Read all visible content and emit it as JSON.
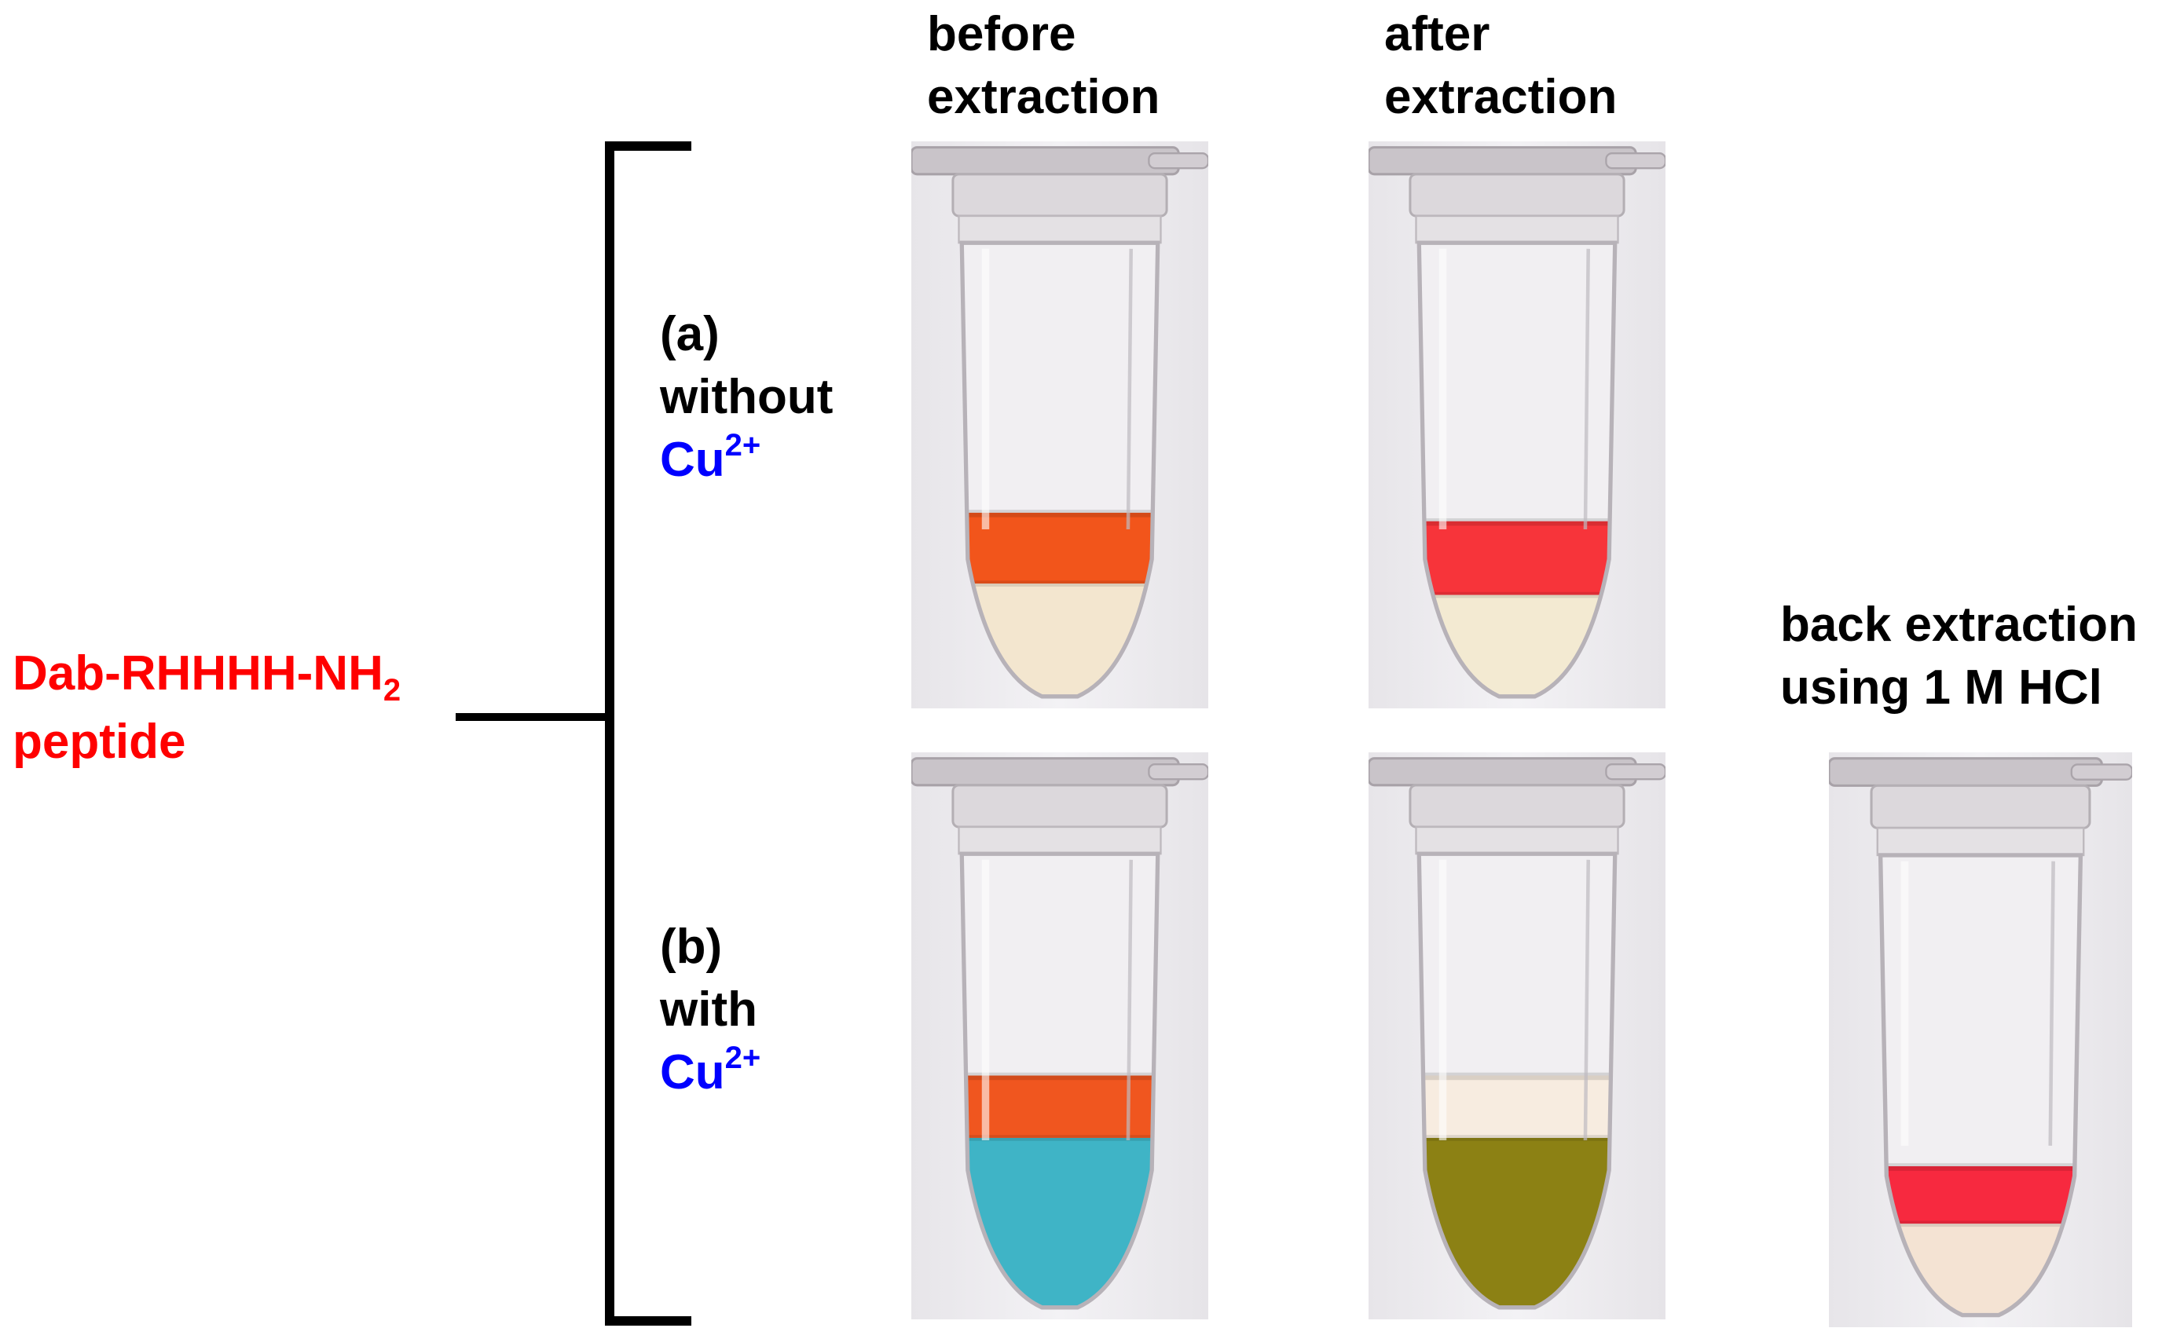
{
  "columns": {
    "before": [
      "before",
      "extraction"
    ],
    "after": [
      "after",
      "extraction"
    ],
    "back": [
      "back extraction",
      "using 1 M HCl"
    ]
  },
  "peptide": {
    "line1_main": "Dab-RHHHH-NH",
    "line1_sub": "2",
    "line2": "peptide"
  },
  "row_a": {
    "label": "(a)",
    "condition": "without",
    "ion_main": "Cu",
    "ion_sup": "2+"
  },
  "row_b": {
    "label": "(b)",
    "condition": "with",
    "ion_main": "Cu",
    "ion_sup": "2+"
  },
  "colors": {
    "peptide_label": "#ff0000",
    "ion_label": "#0000ff",
    "tube_a_before_upper": "#f2551b",
    "tube_a_before_lower": "#f3e6cf",
    "tube_a_after_upper": "#f7343a",
    "tube_a_after_lower": "#f3ead2",
    "tube_b_before_upper": "#f0561f",
    "tube_b_before_lower": "#3fb4c6",
    "tube_b_after_upper": "#f7ece0",
    "tube_b_after_lower": "#8c8114",
    "tube_back_upper": "#f7293f",
    "tube_back_lower": "#f4e3d3"
  }
}
